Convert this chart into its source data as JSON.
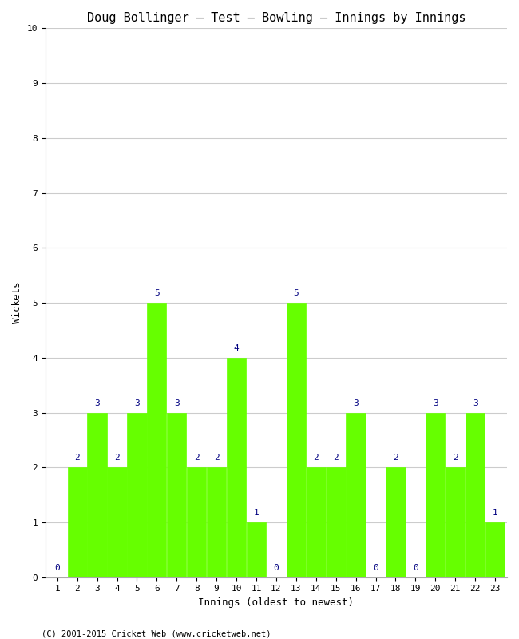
{
  "title": "Doug Bollinger – Test – Bowling – Innings by Innings",
  "xlabel": "Innings (oldest to newest)",
  "ylabel": "Wickets",
  "bar_color": "#66ff00",
  "bar_edge_color": "#66ff00",
  "background_color": "#ffffff",
  "grid_color": "#cccccc",
  "label_color": "#000080",
  "innings": [
    1,
    2,
    3,
    4,
    5,
    6,
    7,
    8,
    9,
    10,
    11,
    12,
    13,
    14,
    15,
    16,
    17,
    18,
    19,
    20,
    21,
    22,
    23
  ],
  "wickets": [
    0,
    2,
    3,
    2,
    3,
    5,
    3,
    2,
    2,
    4,
    1,
    0,
    5,
    2,
    2,
    3,
    0,
    2,
    0,
    3,
    2,
    3,
    1
  ],
  "ylim": [
    0,
    10
  ],
  "yticks": [
    0,
    1,
    2,
    3,
    4,
    5,
    6,
    7,
    8,
    9,
    10
  ],
  "footnote": "(C) 2001-2015 Cricket Web (www.cricketweb.net)",
  "title_fontsize": 11,
  "axis_label_fontsize": 9,
  "tick_fontsize": 8,
  "bar_label_fontsize": 8
}
